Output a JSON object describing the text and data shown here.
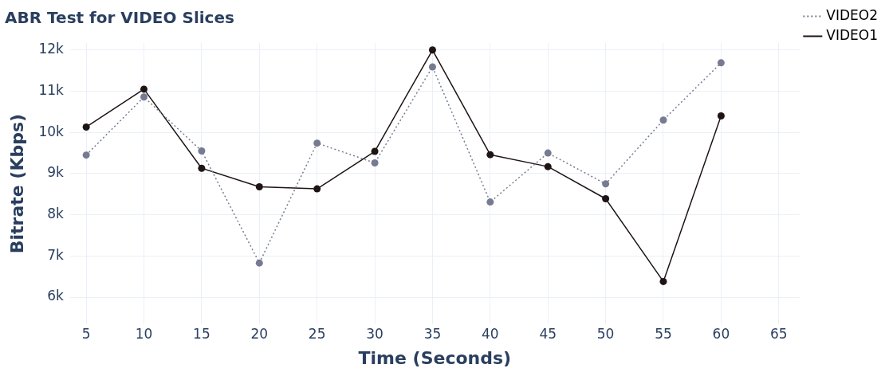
{
  "chart_data": {
    "type": "line",
    "title": "ABR Test for VIDEO Slices",
    "xlabel": "Time (Seconds)",
    "ylabel": "Bitrate (Kbps)",
    "x": [
      5,
      10,
      15,
      20,
      25,
      30,
      35,
      40,
      45,
      50,
      55,
      60
    ],
    "series": [
      {
        "name": "VIDEO2",
        "color": "#767b91",
        "line_style": "dotted",
        "values": [
          9450,
          10860,
          9550,
          6830,
          9740,
          9260,
          11590,
          8310,
          9500,
          8750,
          10300,
          11690
        ]
      },
      {
        "name": "VIDEO1",
        "color": "#1e1414",
        "line_style": "solid",
        "values": [
          10130,
          11050,
          9130,
          8680,
          8630,
          9540,
          12000,
          9460,
          9170,
          8390,
          6380,
          10400
        ]
      }
    ],
    "xlim": [
      3.6,
      66.8
    ],
    "xticks": [
      5,
      10,
      15,
      20,
      25,
      30,
      35,
      40,
      45,
      50,
      55,
      60,
      65
    ],
    "ylim": [
      5340,
      12170
    ],
    "yticks": [
      {
        "value": 6000,
        "label": "6k"
      },
      {
        "value": 7000,
        "label": "7k"
      },
      {
        "value": 8000,
        "label": "8k"
      },
      {
        "value": 9000,
        "label": "9k"
      },
      {
        "value": 10000,
        "label": "10k"
      },
      {
        "value": 11000,
        "label": "11k"
      },
      {
        "value": 12000,
        "label": "12k"
      }
    ],
    "grid": true,
    "legend": "top right",
    "marker": "circle"
  }
}
